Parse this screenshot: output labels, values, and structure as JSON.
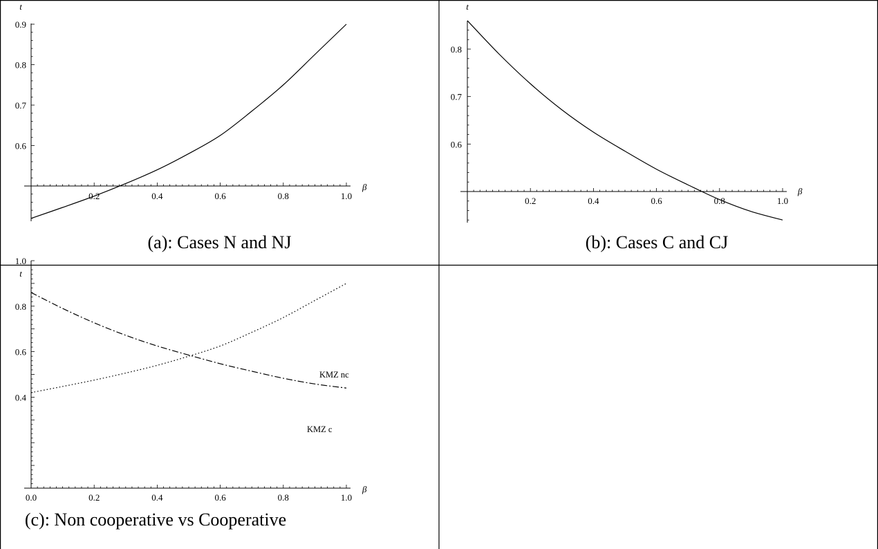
{
  "captions": {
    "a": "(a): Cases N and NJ",
    "b": "(b): Cases C and CJ",
    "c": "(c): Non cooperative vs Cooperative"
  },
  "chart_data": [
    {
      "id": "a",
      "type": "line",
      "title": "(a): Cases N and NJ",
      "xlabel": "β",
      "ylabel": "t",
      "xlim": [
        0,
        1.0
      ],
      "ylim": [
        0.42,
        0.9
      ],
      "axis_crossing_y": 0.5,
      "xticks": [
        "0.2",
        "0.4",
        "0.6",
        "0.8",
        "1.0"
      ],
      "yticks": [
        "0.6",
        "0.7",
        "0.8",
        "0.9"
      ],
      "series": [
        {
          "style": "solid",
          "x": [
            0,
            0.1,
            0.2,
            0.3,
            0.4,
            0.5,
            0.6,
            0.7,
            0.8,
            0.9,
            1.0
          ],
          "y": [
            0.42,
            0.447,
            0.475,
            0.506,
            0.54,
            0.58,
            0.625,
            0.685,
            0.75,
            0.825,
            0.9
          ]
        }
      ]
    },
    {
      "id": "b",
      "type": "line",
      "title": "(b): Cases C and CJ",
      "xlabel": "β",
      "ylabel": "t",
      "xlim": [
        0,
        1.0
      ],
      "ylim": [
        0.44,
        0.86
      ],
      "axis_crossing_y": 0.5,
      "xticks": [
        "0.2",
        "0.4",
        "0.6",
        "0.8",
        "1.0"
      ],
      "yticks": [
        "0.6",
        "0.7",
        "0.8"
      ],
      "series": [
        {
          "style": "solid",
          "x": [
            0,
            0.1,
            0.2,
            0.3,
            0.4,
            0.5,
            0.6,
            0.7,
            0.8,
            0.9,
            1.0
          ],
          "y": [
            0.86,
            0.79,
            0.727,
            0.672,
            0.625,
            0.585,
            0.547,
            0.514,
            0.483,
            0.458,
            0.44
          ]
        }
      ]
    },
    {
      "id": "c",
      "type": "line",
      "title": "(c): Non cooperative vs Cooperative",
      "xlabel": "β",
      "ylabel": "t",
      "xlim": [
        0,
        1.0
      ],
      "ylim": [
        0,
        1.0
      ],
      "xticks": [
        "0.0",
        "0.2",
        "0.4",
        "0.6",
        "0.8",
        "1.0"
      ],
      "yticks": [
        "0.4",
        "0.6",
        "0.8",
        "1.0"
      ],
      "series": [
        {
          "name": "KMZ nc",
          "style": "dotted",
          "x": [
            0,
            0.1,
            0.2,
            0.3,
            0.4,
            0.5,
            0.6,
            0.7,
            0.8,
            0.9,
            1.0
          ],
          "y": [
            0.42,
            0.447,
            0.475,
            0.506,
            0.54,
            0.58,
            0.625,
            0.685,
            0.75,
            0.825,
            0.9
          ]
        },
        {
          "name": "KMZ c",
          "style": "dashdot",
          "x": [
            0,
            0.1,
            0.2,
            0.3,
            0.4,
            0.5,
            0.6,
            0.7,
            0.8,
            0.9,
            1.0
          ],
          "y": [
            0.86,
            0.79,
            0.727,
            0.672,
            0.625,
            0.585,
            0.547,
            0.514,
            0.483,
            0.458,
            0.44
          ]
        }
      ]
    }
  ]
}
